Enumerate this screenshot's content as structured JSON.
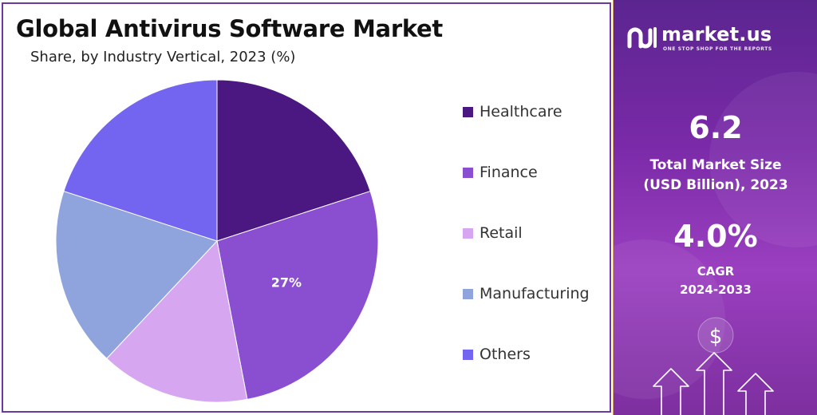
{
  "chart_data": {
    "type": "pie",
    "title": "Global Antivirus Software Market",
    "subtitle": "Share, by Industry Vertical, 2023 (%)",
    "categories": [
      "Healthcare",
      "Finance",
      "Retail",
      "Manufacturing",
      "Others"
    ],
    "values": [
      20,
      27,
      15,
      18,
      20
    ],
    "colors": [
      "#4b1780",
      "#8a4fd0",
      "#d6a6f0",
      "#8fa4dc",
      "#7465f0"
    ],
    "data_labels": [
      "",
      "27%",
      "",
      "",
      ""
    ],
    "legend_placement": "right"
  },
  "sidebar": {
    "brand_name": "market.us",
    "brand_tagline": "ONE STOP SHOP FOR THE REPORTS",
    "market_size_value": "6.2",
    "market_size_label_1": "Total Market Size",
    "market_size_label_2": "(USD Billion), 2023",
    "cagr_value": "4.0%",
    "cagr_label_1": "CAGR",
    "cagr_label_2": "2024-2033",
    "currency_symbol": "$",
    "accent_color": "#7a2aa8",
    "icons": [
      "market-us-logo-icon",
      "dollar-icon",
      "up-arrow-icon"
    ]
  }
}
